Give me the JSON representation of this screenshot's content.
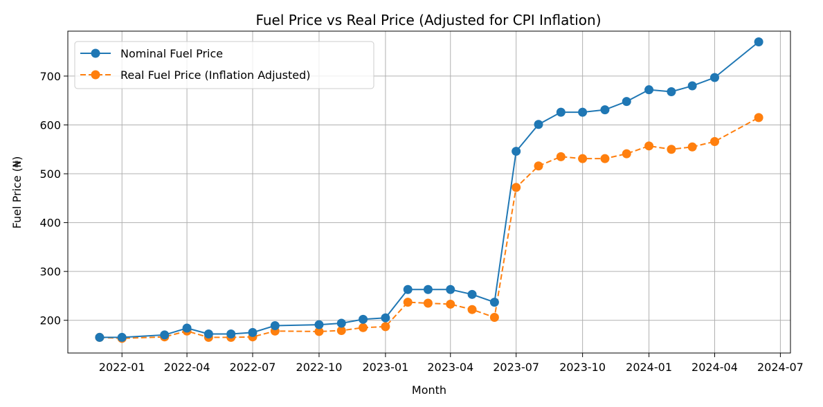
{
  "chart_data": {
    "type": "line",
    "title": "Fuel Price vs Real Price (Adjusted for CPI Inflation)",
    "xlabel": "Month",
    "ylabel": "Fuel Price (₦)",
    "x_axis_type": "date",
    "xlim": [
      "2021-10-18",
      "2024-07-15"
    ],
    "ylim": [
      133,
      792
    ],
    "x_ticks": [
      {
        "date": "2022-01-01",
        "label": "2022-01"
      },
      {
        "date": "2022-04-01",
        "label": "2022-04"
      },
      {
        "date": "2022-07-01",
        "label": "2022-07"
      },
      {
        "date": "2022-10-01",
        "label": "2022-10"
      },
      {
        "date": "2023-01-01",
        "label": "2023-01"
      },
      {
        "date": "2023-04-01",
        "label": "2023-04"
      },
      {
        "date": "2023-07-01",
        "label": "2023-07"
      },
      {
        "date": "2023-10-01",
        "label": "2023-10"
      },
      {
        "date": "2024-01-01",
        "label": "2024-01"
      },
      {
        "date": "2024-04-01",
        "label": "2024-04"
      },
      {
        "date": "2024-07-01",
        "label": "2024-07"
      }
    ],
    "y_ticks": [
      200,
      300,
      400,
      500,
      600,
      700
    ],
    "grid": true,
    "legend_position": "top-left",
    "x": [
      "2021-12-01",
      "2022-01-01",
      "2022-03-01",
      "2022-04-01",
      "2022-05-01",
      "2022-06-01",
      "2022-07-01",
      "2022-08-01",
      "2022-10-01",
      "2022-11-01",
      "2022-12-01",
      "2023-01-01",
      "2023-02-01",
      "2023-03-01",
      "2023-04-01",
      "2023-05-01",
      "2023-06-01",
      "2023-07-01",
      "2023-08-01",
      "2023-09-01",
      "2023-10-01",
      "2023-11-01",
      "2023-12-01",
      "2024-01-01",
      "2024-02-01",
      "2024-03-01",
      "2024-04-01",
      "2024-06-01"
    ],
    "series": [
      {
        "name": "Nominal Fuel Price",
        "color": "#1f77b4",
        "line_style": "solid",
        "marker": "circle",
        "values": [
          165,
          165,
          170,
          184,
          172,
          172,
          175,
          189,
          191,
          194,
          202,
          205,
          263,
          263,
          263,
          253,
          237,
          546,
          601,
          626,
          626,
          631,
          648,
          672,
          668,
          680,
          697,
          770
        ]
      },
      {
        "name": "Real Fuel Price (Inflation Adjusted)",
        "color": "#ff7f0e",
        "line_style": "dashed",
        "marker": "circle",
        "values": [
          165,
          163,
          166,
          178,
          165,
          165,
          166,
          178,
          177,
          179,
          185,
          187,
          237,
          235,
          233,
          222,
          206,
          472,
          516,
          535,
          531,
          531,
          541,
          557,
          550,
          555,
          566,
          615
        ]
      }
    ]
  }
}
